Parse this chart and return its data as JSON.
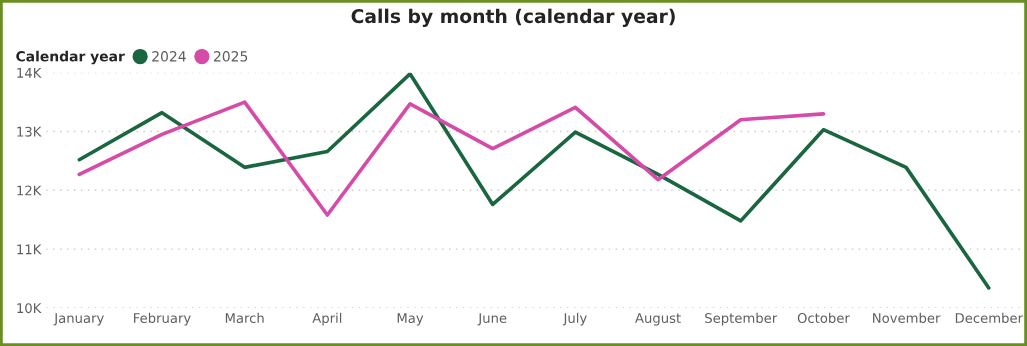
{
  "chart_data": {
    "type": "line",
    "title": "Calls by month (calendar year)",
    "legend_title": "Calendar year",
    "legend": "top left",
    "grid": "y",
    "line_style": "solid",
    "marker": "none",
    "categories": [
      "January",
      "February",
      "March",
      "April",
      "May",
      "June",
      "July",
      "August",
      "September",
      "October",
      "November",
      "December"
    ],
    "series": [
      {
        "name": "2024",
        "color": "#1a6641",
        "values": [
          12520,
          13320,
          12390,
          12660,
          13980,
          11760,
          12990,
          12270,
          11480,
          13030,
          12390,
          10340
        ]
      },
      {
        "name": "2025",
        "color": "#d64aa8",
        "values": [
          12270,
          12950,
          13500,
          11580,
          13470,
          12710,
          13410,
          12180,
          13200,
          13300,
          null,
          null
        ]
      }
    ],
    "ylim": [
      10000,
      14000
    ],
    "yticks": [
      {
        "value": 10000,
        "label": "10K"
      },
      {
        "value": 11000,
        "label": "11K"
      },
      {
        "value": 12000,
        "label": "12K"
      },
      {
        "value": 13000,
        "label": "13K"
      },
      {
        "value": 14000,
        "label": "14K"
      }
    ]
  }
}
